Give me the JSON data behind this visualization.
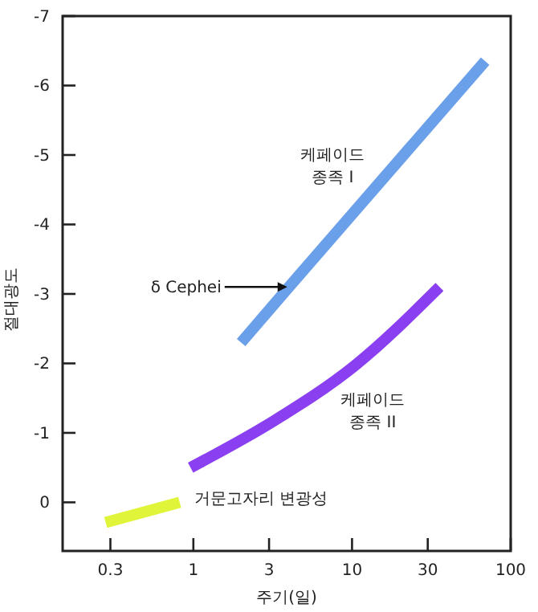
{
  "chart_data": {
    "type": "line",
    "xlabel": "주기(일)",
    "ylabel": "절대광도",
    "log": "x",
    "xlim": [
      0.15,
      100
    ],
    "xticks": [
      0.3,
      1,
      3,
      10,
      30,
      100
    ],
    "ylim": [
      0.7,
      -7
    ],
    "yticks": [
      0,
      -1,
      -2,
      -3,
      -4,
      -5,
      -6,
      -7
    ],
    "grid": false,
    "marker": "none",
    "line_style": "solid",
    "series": [
      {
        "name": "케페이드 종족 I",
        "color": "#6a9fea",
        "x": [
          2,
          4,
          69
        ],
        "values": [
          -2.3,
          -3.1,
          -6.35
        ]
      },
      {
        "name": "케페이드 종족 II",
        "color": "#8a3ff0",
        "x": [
          0.96,
          3.26,
          10.3,
          35.6
        ],
        "values": [
          -0.5,
          -1.18,
          -1.96,
          -3.1
        ]
      },
      {
        "name": "거문고자리 변광성",
        "color": "#e0f53a",
        "x": [
          0.28,
          0.82
        ],
        "values": [
          0.29,
          0.0
        ]
      }
    ],
    "annotations": [
      {
        "text": "δ Cephei",
        "x": 4,
        "y": -3.1
      }
    ]
  }
}
